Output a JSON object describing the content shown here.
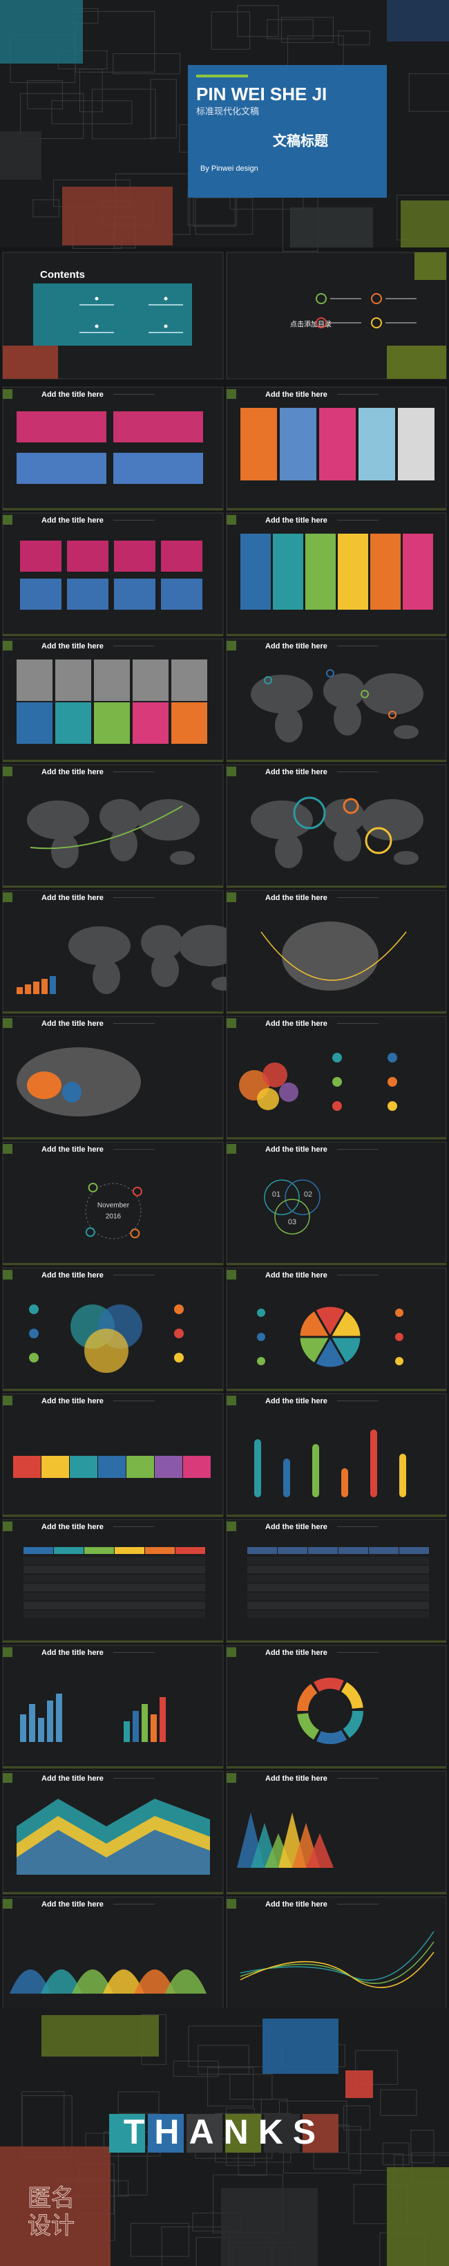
{
  "cover": {
    "title": "PIN WEI SHE JI",
    "subtitle_cn": "标准现代化文稿",
    "heading_cn": "文稿标题",
    "author": "By Pinwei design"
  },
  "contents": {
    "heading": "Contents",
    "right_label": "点击添加目录"
  },
  "slides": [
    {
      "title": "Add the title here"
    },
    {
      "title": "Add the title here"
    },
    {
      "title": "Add the title here"
    },
    {
      "title": "Add the title here"
    },
    {
      "title": "Add the title here"
    },
    {
      "title": "Add the title here"
    },
    {
      "title": "Add the title here"
    },
    {
      "title": "Add the title here"
    },
    {
      "title": "Add the title here"
    },
    {
      "title": "Add the title here"
    },
    {
      "title": "Add the title here"
    },
    {
      "title": "Add the title here"
    },
    {
      "title": "Add the title here",
      "labels": [
        "November",
        "2016"
      ]
    },
    {
      "title": "Add the title here",
      "labels": [
        "01",
        "02",
        "03"
      ]
    },
    {
      "title": "Add the title here"
    },
    {
      "title": "Add the title here"
    },
    {
      "title": "Add the title here"
    },
    {
      "title": "Add the title here"
    },
    {
      "title": "Add the title here"
    },
    {
      "title": "Add the title here"
    },
    {
      "title": "Add the title here"
    },
    {
      "title": "Add the title here"
    },
    {
      "title": "Add the title here"
    },
    {
      "title": "Add the title here"
    },
    {
      "title": "Add the title here"
    },
    {
      "title": "Add the title here"
    }
  ],
  "thanks": {
    "text": "THANKS",
    "logo": [
      "匿名",
      "设计"
    ]
  }
}
